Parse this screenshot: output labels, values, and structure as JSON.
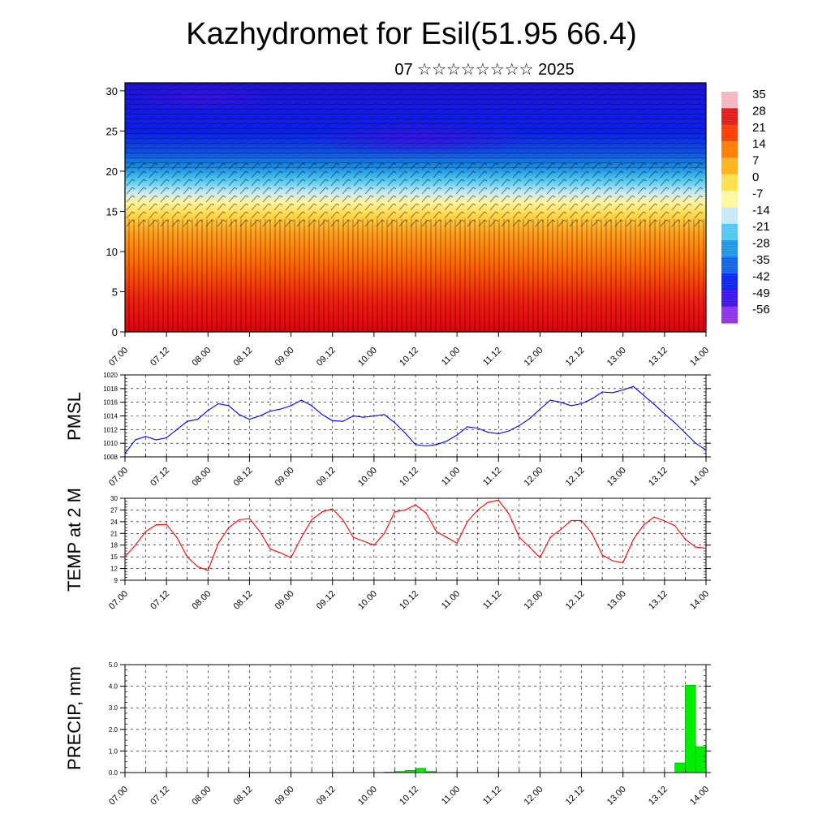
{
  "title": "Kazhydromet for Esil(51.95 66.4)",
  "subtitle": "07 ☆☆☆☆☆☆☆☆ 2025",
  "chart_data": [
    {
      "type": "heatmap",
      "ylim": [
        0,
        31
      ],
      "yticks": [
        0,
        5,
        10,
        15,
        20,
        25,
        30
      ],
      "xticks": [
        "07.00",
        "07.12",
        "08.00",
        "08.12",
        "09.00",
        "09.12",
        "10.00",
        "10.12",
        "11.00",
        "11.12",
        "12.00",
        "12.12",
        "13.00",
        "13.12",
        "14.00"
      ],
      "colorbar_labels": [
        "35",
        "28",
        "21",
        "14",
        "7",
        "0",
        "-7",
        "-14",
        "-21",
        "-28",
        "-35",
        "-42",
        "-49",
        "-56"
      ],
      "colors": [
        "#f4b6be",
        "#e01818",
        "#ff3a00",
        "#ff7a00",
        "#ffb21a",
        "#ffe04a",
        "#fff8a0",
        "#c8e8f4",
        "#4fc8ee",
        "#1a96e6",
        "#1060e6",
        "#0a20f0",
        "#3a10e8",
        "#8a30e8"
      ]
    },
    {
      "type": "line",
      "ylabel": "PMSL",
      "ylim": [
        1008,
        1020
      ],
      "yticks": [
        "1008",
        "1010",
        "1012",
        "1014",
        "1016",
        "1018",
        "1020"
      ],
      "xticks": [
        "07.00",
        "07.12",
        "08.00",
        "08.12",
        "09.00",
        "09.12",
        "10.00",
        "10.12",
        "11.00",
        "11.12",
        "12.00",
        "12.12",
        "13.00",
        "13.12",
        "14.00"
      ],
      "color": "#0000ff",
      "x": [
        0,
        3,
        6,
        9,
        12,
        15,
        18,
        21,
        24,
        27,
        30,
        33,
        36,
        39,
        42,
        45,
        48,
        51,
        54,
        57,
        60,
        63,
        66,
        69,
        72,
        75,
        78,
        81,
        84,
        87,
        90,
        93,
        96,
        99,
        102,
        105,
        108,
        111,
        114,
        117,
        120,
        123,
        126,
        129,
        132,
        135,
        138,
        141,
        144,
        147,
        150,
        153,
        156,
        159,
        162,
        165,
        168
      ],
      "y": [
        1008.5,
        1010.5,
        1011.0,
        1010.5,
        1010.8,
        1012.0,
        1013.2,
        1013.5,
        1014.8,
        1015.8,
        1015.5,
        1014.2,
        1013.5,
        1014.0,
        1014.7,
        1015.0,
        1015.5,
        1016.3,
        1015.5,
        1014.2,
        1013.3,
        1013.2,
        1014.0,
        1013.8,
        1014.0,
        1014.2,
        1013.0,
        1011.5,
        1009.8,
        1009.6,
        1009.8,
        1010.3,
        1011.2,
        1012.4,
        1012.2,
        1011.6,
        1011.4,
        1011.8,
        1012.6,
        1013.6,
        1015.0,
        1016.3,
        1016.0,
        1015.5,
        1015.8,
        1016.5,
        1017.5,
        1017.4,
        1017.8,
        1018.3,
        1017.0,
        1015.7,
        1014.3,
        1013.0,
        1011.5,
        1010.0,
        1009.0
      ]
    },
    {
      "type": "line",
      "ylabel": "TEMP at 2 M",
      "ylim": [
        9,
        30
      ],
      "yticks": [
        "9",
        "12",
        "15",
        "18",
        "21",
        "24",
        "27",
        "30"
      ],
      "xticks": [
        "07.00",
        "07.12",
        "08.00",
        "08.12",
        "09.00",
        "09.12",
        "10.00",
        "10.12",
        "11.00",
        "11.12",
        "12.00",
        "12.12",
        "13.00",
        "13.12",
        "14.00"
      ],
      "color": "#ff0000",
      "x": [
        0,
        3,
        6,
        9,
        12,
        15,
        18,
        21,
        24,
        27,
        30,
        33,
        36,
        39,
        42,
        45,
        48,
        51,
        54,
        57,
        60,
        63,
        66,
        69,
        72,
        75,
        78,
        81,
        84,
        87,
        90,
        93,
        96,
        99,
        102,
        105,
        108,
        111,
        114,
        117,
        120,
        123,
        126,
        129,
        132,
        135,
        138,
        141,
        144,
        147,
        150,
        153,
        156,
        159,
        162,
        165,
        168
      ],
      "y": [
        15.0,
        18.0,
        21.5,
        23.2,
        23.3,
        20.0,
        15.0,
        12.5,
        11.5,
        18.5,
        22.5,
        24.5,
        24.8,
        21.5,
        17.0,
        16.0,
        14.8,
        20.0,
        24.5,
        26.5,
        27.3,
        24.5,
        20.0,
        19.0,
        18.0,
        21.0,
        26.5,
        27.0,
        28.3,
        26.3,
        21.5,
        20.0,
        18.5,
        24.0,
        27.0,
        29.0,
        29.5,
        26.0,
        20.0,
        17.5,
        14.8,
        20.0,
        22.0,
        24.3,
        24.3,
        21.0,
        15.5,
        14.0,
        13.5,
        19.5,
        23.2,
        25.2,
        24.2,
        23.0,
        19.5,
        17.5,
        17.2
      ]
    },
    {
      "type": "bar",
      "ylabel": "PRECIP, mm",
      "ylim": [
        0,
        5
      ],
      "yticks": [
        "0.0",
        "1.0",
        "2.0",
        "3.0",
        "4.0",
        "5.0"
      ],
      "xticks": [
        "07.00",
        "07.12",
        "08.00",
        "08.12",
        "09.00",
        "09.12",
        "10.00",
        "10.12",
        "11.00",
        "11.12",
        "12.00",
        "12.12",
        "13.00",
        "13.12",
        "14.00"
      ],
      "color": "#00ee00",
      "bars": [
        {
          "x0": 75,
          "x1": 78,
          "v": 0.02
        },
        {
          "x0": 78,
          "x1": 81,
          "v": 0.05
        },
        {
          "x0": 81,
          "x1": 84,
          "v": 0.1
        },
        {
          "x0": 84,
          "x1": 87,
          "v": 0.2
        },
        {
          "x0": 87,
          "x1": 90,
          "v": 0.05
        },
        {
          "x0": 159,
          "x1": 162,
          "v": 0.45
        },
        {
          "x0": 162,
          "x1": 165,
          "v": 4.05
        },
        {
          "x0": 165,
          "x1": 168,
          "v": 1.2
        }
      ]
    }
  ]
}
